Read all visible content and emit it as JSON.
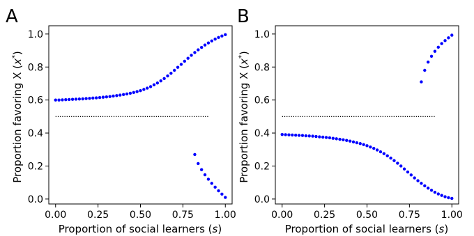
{
  "colors": {
    "points": "#0000ff",
    "reference_line": "#000000",
    "axes": "#000000"
  },
  "chart_data": [
    {
      "type": "scatter",
      "panel_label": "A",
      "xlabel_main": "Proportion of social learners (",
      "xlabel_var": "s",
      "xlabel_close": ")",
      "ylabel_main": "Proportion favoring X (",
      "ylabel_var": "x",
      "ylabel_sup": "*",
      "ylabel_close": ")",
      "xlim": [
        -0.04,
        1.04
      ],
      "ylim": [
        -0.03,
        1.05
      ],
      "xticks": [
        0.0,
        0.25,
        0.5,
        0.75,
        1.0
      ],
      "xtick_labels": [
        "0.00",
        "0.25",
        "0.50",
        "0.75",
        "1.00"
      ],
      "yticks": [
        0.0,
        0.2,
        0.4,
        0.6,
        0.8,
        1.0
      ],
      "ytick_labels": [
        "0.0",
        "0.2",
        "0.4",
        "0.6",
        "0.8",
        "1.0"
      ],
      "grid": false,
      "reference_line": {
        "y": 0.5,
        "x_start": 0.0,
        "x_end": 0.9,
        "style": "dotted"
      },
      "series": [
        {
          "x": [
            0.0,
            0.02,
            0.04,
            0.06,
            0.08,
            0.1,
            0.12,
            0.14,
            0.16,
            0.18,
            0.2,
            0.22,
            0.24,
            0.26,
            0.28,
            0.3,
            0.32,
            0.34,
            0.36,
            0.38,
            0.4,
            0.42,
            0.44,
            0.46,
            0.48,
            0.5,
            0.52,
            0.54,
            0.56,
            0.58,
            0.6,
            0.62,
            0.64,
            0.66,
            0.68,
            0.7,
            0.72,
            0.74,
            0.76,
            0.78,
            0.8,
            0.82,
            0.84,
            0.86,
            0.88,
            0.9,
            0.92,
            0.94,
            0.96,
            0.98,
            1.0
          ],
          "y": [
            0.6,
            0.6,
            0.601,
            0.602,
            0.603,
            0.604,
            0.605,
            0.606,
            0.607,
            0.609,
            0.61,
            0.612,
            0.613,
            0.615,
            0.617,
            0.619,
            0.621,
            0.624,
            0.627,
            0.63,
            0.633,
            0.637,
            0.641,
            0.646,
            0.651,
            0.657,
            0.664,
            0.672,
            0.681,
            0.692,
            0.703,
            0.716,
            0.73,
            0.746,
            0.762,
            0.78,
            0.798,
            0.816,
            0.835,
            0.853,
            0.871,
            0.888,
            0.904,
            0.919,
            0.933,
            0.946,
            0.958,
            0.969,
            0.979,
            0.988,
            0.996
          ]
        },
        {
          "x": [
            0.82,
            0.84,
            0.86,
            0.88,
            0.9,
            0.92,
            0.94,
            0.96,
            0.98,
            1.0
          ],
          "y": [
            0.27,
            0.215,
            0.178,
            0.147,
            0.12,
            0.095,
            0.072,
            0.05,
            0.03,
            0.01
          ]
        }
      ]
    },
    {
      "type": "scatter",
      "panel_label": "B",
      "xlabel_main": "Proportion of social learners (",
      "xlabel_var": "s",
      "xlabel_close": ")",
      "ylabel_main": "Proportion favoring X (",
      "ylabel_var": "x",
      "ylabel_sup": "*",
      "ylabel_close": ")",
      "xlim": [
        -0.04,
        1.04
      ],
      "ylim": [
        -0.03,
        1.05
      ],
      "xticks": [
        0.0,
        0.25,
        0.5,
        0.75,
        1.0
      ],
      "xtick_labels": [
        "0.00",
        "0.25",
        "0.50",
        "0.75",
        "1.00"
      ],
      "yticks": [
        0.0,
        0.2,
        0.4,
        0.6,
        0.8,
        1.0
      ],
      "ytick_labels": [
        "0.0",
        "0.2",
        "0.4",
        "0.6",
        "0.8",
        "1.0"
      ],
      "grid": false,
      "reference_line": {
        "y": 0.5,
        "x_start": 0.0,
        "x_end": 0.9,
        "style": "dotted"
      },
      "series": [
        {
          "x": [
            0.0,
            0.02,
            0.04,
            0.06,
            0.08,
            0.1,
            0.12,
            0.14,
            0.16,
            0.18,
            0.2,
            0.22,
            0.24,
            0.26,
            0.28,
            0.3,
            0.32,
            0.34,
            0.36,
            0.38,
            0.4,
            0.42,
            0.44,
            0.46,
            0.48,
            0.5,
            0.52,
            0.54,
            0.56,
            0.58,
            0.6,
            0.62,
            0.64,
            0.66,
            0.68,
            0.7,
            0.72,
            0.74,
            0.76,
            0.78,
            0.8,
            0.82,
            0.84,
            0.86,
            0.88,
            0.9,
            0.92,
            0.94,
            0.96,
            0.98,
            1.0
          ],
          "y": [
            0.391,
            0.39,
            0.389,
            0.388,
            0.387,
            0.386,
            0.385,
            0.383,
            0.382,
            0.381,
            0.379,
            0.377,
            0.375,
            0.373,
            0.371,
            0.368,
            0.365,
            0.362,
            0.359,
            0.355,
            0.351,
            0.346,
            0.341,
            0.336,
            0.33,
            0.323,
            0.315,
            0.307,
            0.297,
            0.286,
            0.275,
            0.262,
            0.248,
            0.233,
            0.217,
            0.2,
            0.182,
            0.164,
            0.146,
            0.128,
            0.111,
            0.095,
            0.08,
            0.066,
            0.053,
            0.041,
            0.031,
            0.022,
            0.014,
            0.008,
            0.004
          ]
        },
        {
          "x": [
            0.82,
            0.84,
            0.86,
            0.88,
            0.9,
            0.92,
            0.94,
            0.96,
            0.98,
            1.0
          ],
          "y": [
            0.71,
            0.78,
            0.83,
            0.865,
            0.895,
            0.92,
            0.942,
            0.96,
            0.977,
            0.993
          ]
        }
      ]
    }
  ]
}
